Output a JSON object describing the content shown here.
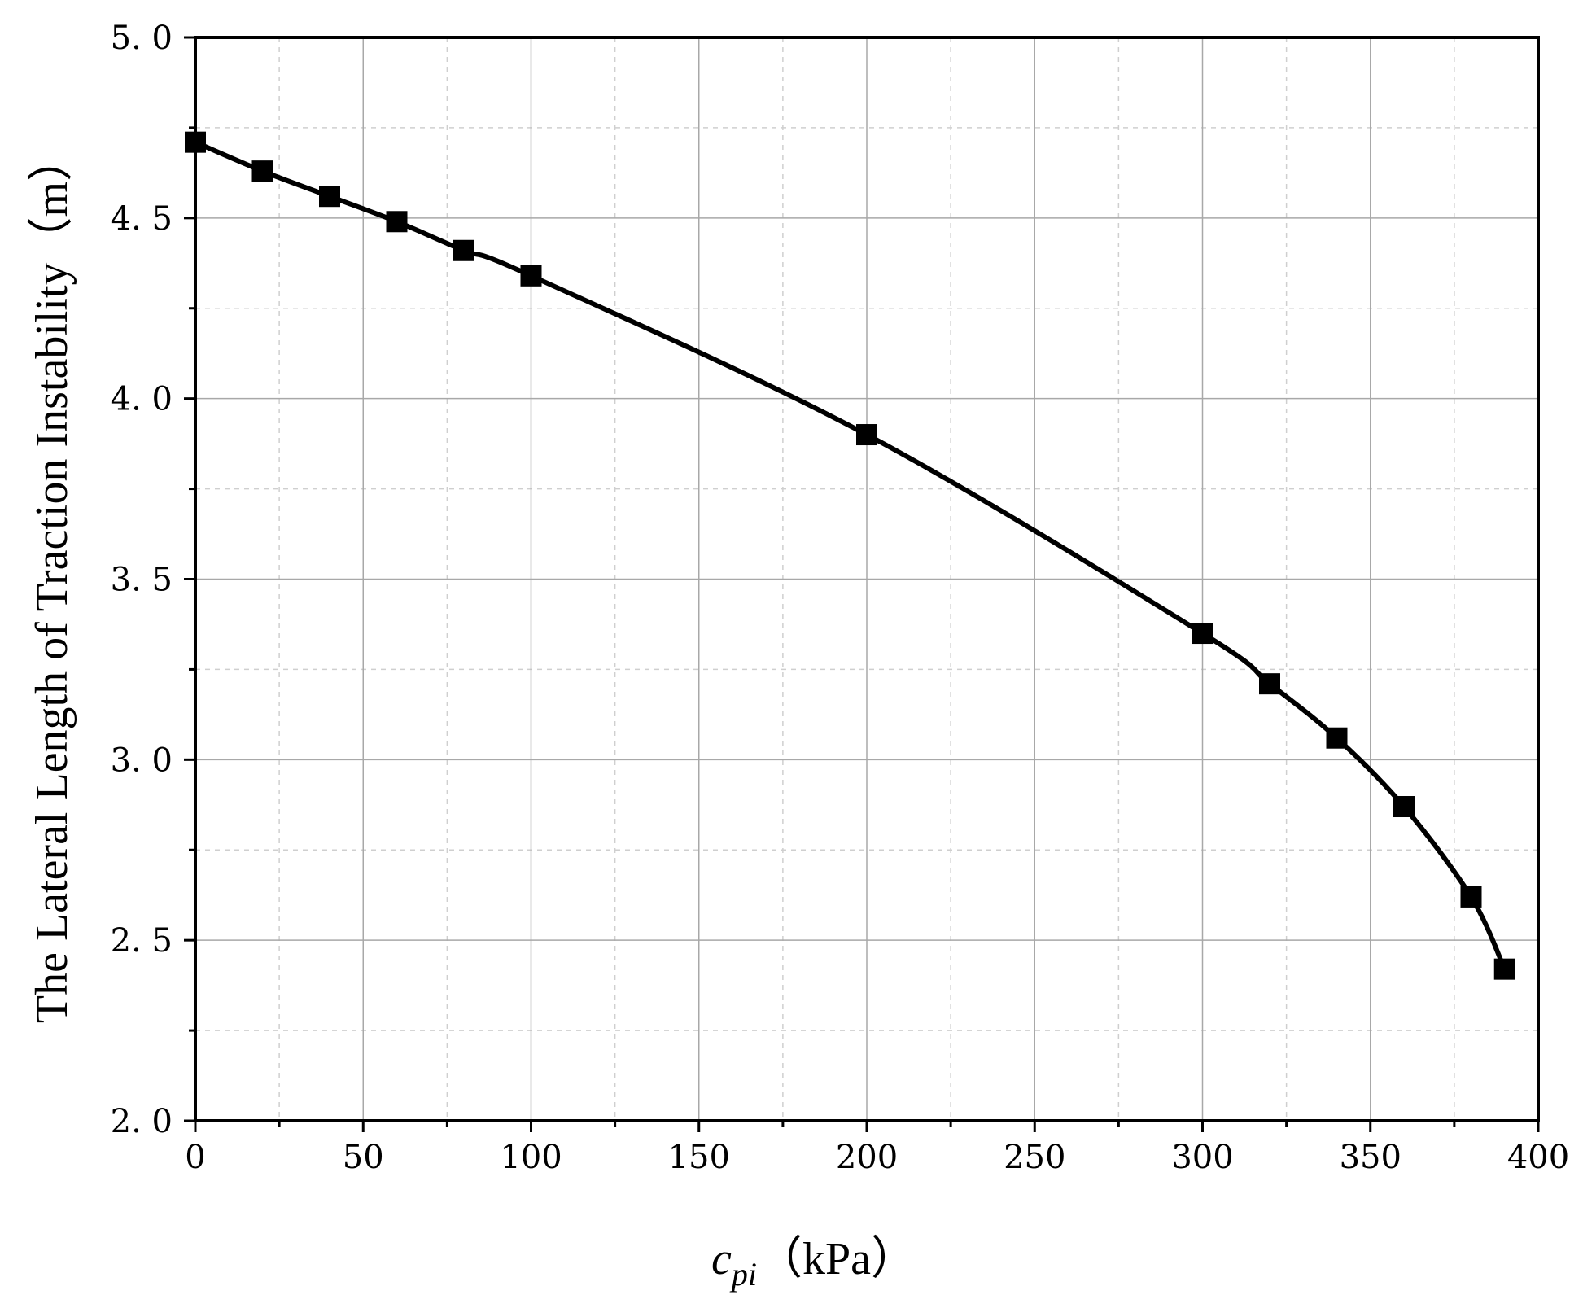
{
  "chart_data": {
    "type": "line",
    "title": "",
    "xlabel": {
      "symbol": "c",
      "subscript": "pi",
      "unit": "（kPa）"
    },
    "ylabel": "The Lateral Length of Traction Instability（m）",
    "xlim": [
      0,
      400
    ],
    "ylim": [
      2.0,
      5.0
    ],
    "x_ticks": [
      0,
      50,
      100,
      150,
      200,
      250,
      300,
      350,
      400
    ],
    "x_tick_labels": [
      "0",
      "50",
      "100",
      "150",
      "200",
      "250",
      "300",
      "350",
      "400"
    ],
    "y_ticks": [
      2.0,
      2.5,
      3.0,
      3.5,
      4.0,
      4.5,
      5.0
    ],
    "y_tick_labels": [
      "2. 0",
      "2. 5",
      "3. 0",
      "3. 5",
      "4. 0",
      "4. 5",
      "5. 0"
    ],
    "grid": true,
    "legend": "none",
    "series": [
      {
        "marker": "square",
        "color": "#000000",
        "smooth": true,
        "x": [
          0,
          20,
          40,
          60,
          80,
          100,
          200,
          300,
          320,
          340,
          360,
          380,
          390
        ],
        "y": [
          4.71,
          4.63,
          4.56,
          4.49,
          4.41,
          4.34,
          3.9,
          3.35,
          3.21,
          3.06,
          2.87,
          2.62,
          2.42
        ]
      }
    ]
  }
}
